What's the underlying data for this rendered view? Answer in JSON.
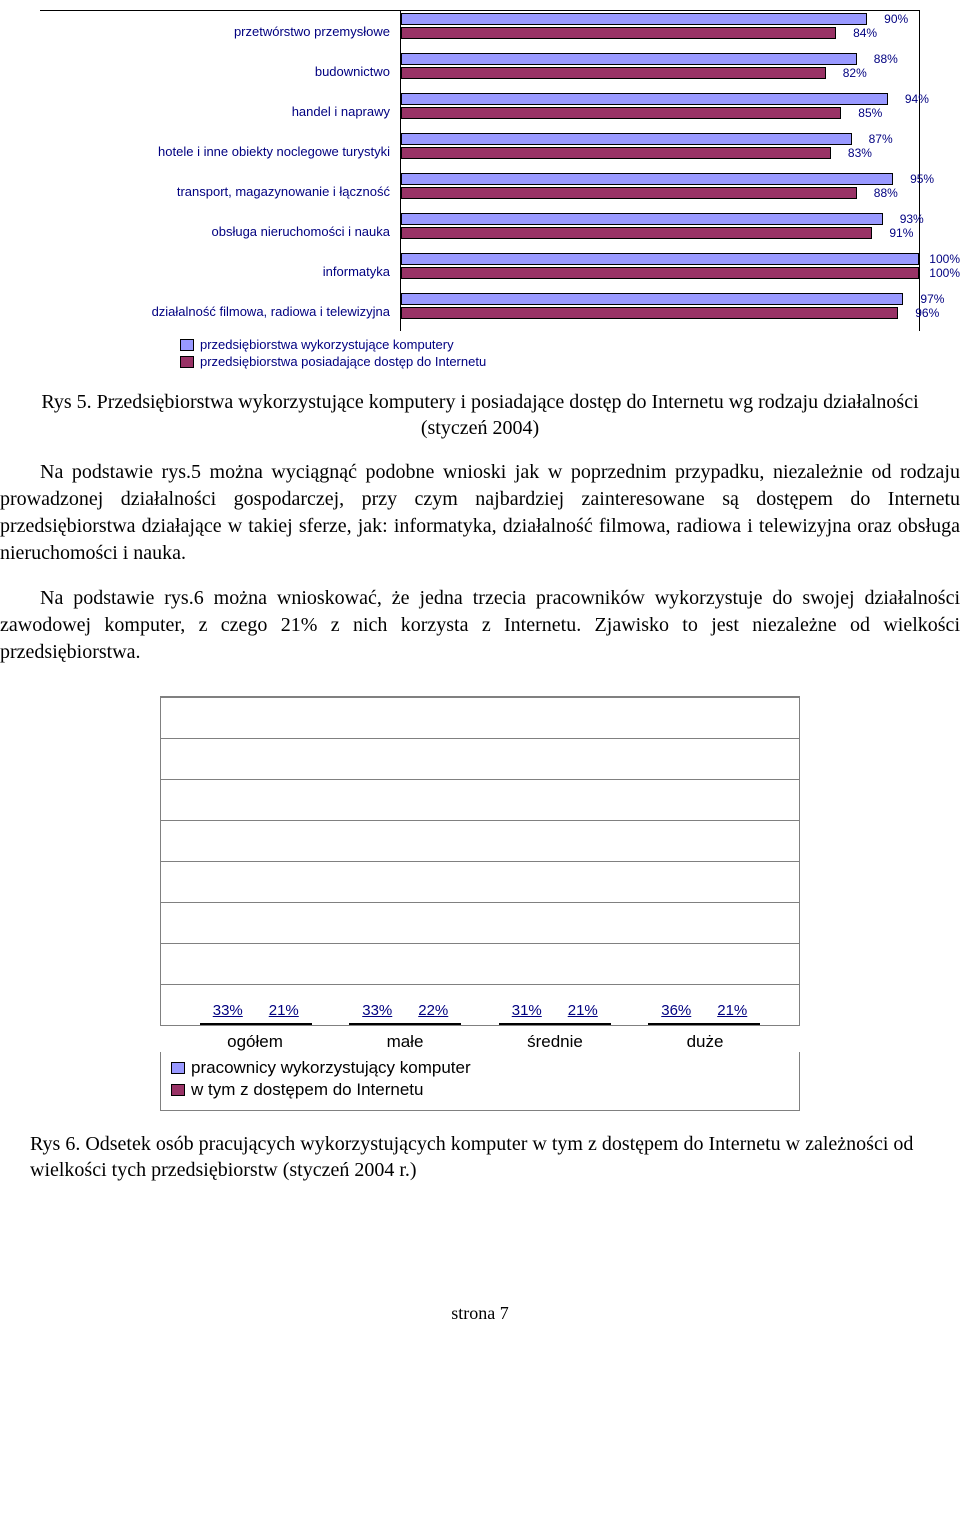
{
  "chart1": {
    "type": "horizontal-bar",
    "colors": {
      "series1": "#9999ff",
      "series2": "#993366"
    },
    "xmax": 100,
    "categories": [
      {
        "label": "przetwórstwo przemysłowe",
        "v1": 90,
        "v2": 84
      },
      {
        "label": "budownictwo",
        "v1": 88,
        "v2": 82
      },
      {
        "label": "handel i naprawy",
        "v1": 94,
        "v2": 85
      },
      {
        "label": "hotele i inne obiekty noclegowe turystyki",
        "v1": 87,
        "v2": 83
      },
      {
        "label": "transport, magazynowanie i łączność",
        "v1": 95,
        "v2": 88
      },
      {
        "label": "obsługa nieruchomości i nauka",
        "v1": 93,
        "v2": 91
      },
      {
        "label": "informatyka",
        "v1": 100,
        "v2": 100
      },
      {
        "label": "działalność filmowa, radiowa i telewizyjna",
        "v1": 97,
        "v2": 96
      }
    ],
    "legend": [
      "przedsiębiorstwa wykorzystujące komputery",
      "przedsiębiorstwa posiadające dostęp do Internetu"
    ]
  },
  "caption1": "Rys 5. Przedsiębiorstwa wykorzystujące komputery i posiadające dostęp do Internetu wg rodzaju działalności (styczeń 2004)",
  "para1": "Na podstawie rys.5 można wyciągnąć podobne wnioski jak w poprzednim przypadku, niezależnie od rodzaju prowadzonej działalności gospodarczej, przy czym najbardziej zainteresowane są dostępem do Internetu przedsiębiorstwa działające w takiej sferze, jak: informatyka, działalność filmowa, radiowa i telewizyjna oraz obsługa nieruchomości i nauka.",
  "para2": "Na podstawie rys.6 można wnioskować, że jedna trzecia pracowników wykorzystuje do swojej działalności zawodowej komputer, z czego 21% z nich korzysta z Internetu. Zjawisko to jest niezależne od wielkości przedsiębiorstwa.",
  "chart2": {
    "type": "grouped-bar",
    "colors": {
      "series1": "#9999ff",
      "series2": "#993366"
    },
    "ymax": 40,
    "grid_count": 8,
    "categories": [
      {
        "label": "ogółem",
        "v1": 33,
        "v2": 21
      },
      {
        "label": "małe",
        "v1": 33,
        "v2": 22
      },
      {
        "label": "średnie",
        "v1": 31,
        "v2": 21
      },
      {
        "label": "duże",
        "v1": 36,
        "v2": 21
      }
    ],
    "legend": [
      "pracownicy wykorzystujący komputer",
      "w tym z dostępem do Internetu"
    ]
  },
  "caption2": "Rys 6. Odsetek osób pracujących wykorzystujących komputer w tym z dostępem do Internetu w zależności od wielkości tych przedsiębiorstw (styczeń 2004 r.)",
  "footer": "strona 7"
}
